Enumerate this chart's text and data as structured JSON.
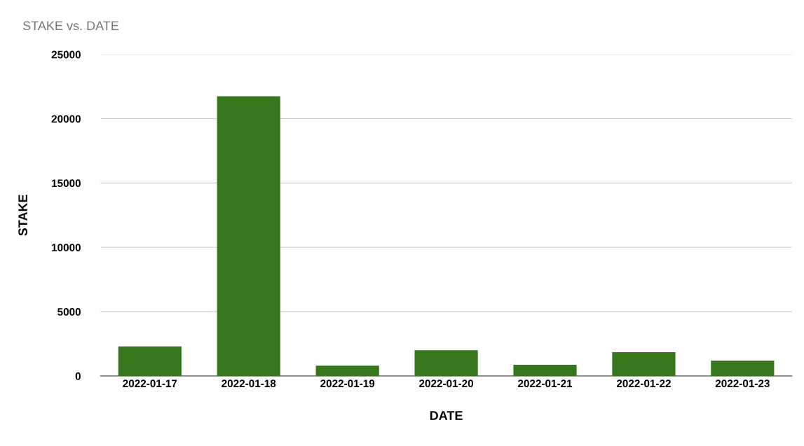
{
  "chart_data": {
    "type": "bar",
    "title": "STAKE vs. DATE",
    "xlabel": "DATE",
    "ylabel": "STAKE",
    "categories": [
      "2022-01-17",
      "2022-01-18",
      "2022-01-19",
      "2022-01-20",
      "2022-01-21",
      "2022-01-22",
      "2022-01-23"
    ],
    "values": [
      2300,
      21750,
      800,
      2000,
      870,
      1850,
      1200
    ],
    "color": "#38761d",
    "ylim": [
      0,
      25000
    ],
    "yticks": [
      0,
      5000,
      10000,
      15000,
      20000,
      25000
    ],
    "grid": "y",
    "legend": false
  }
}
